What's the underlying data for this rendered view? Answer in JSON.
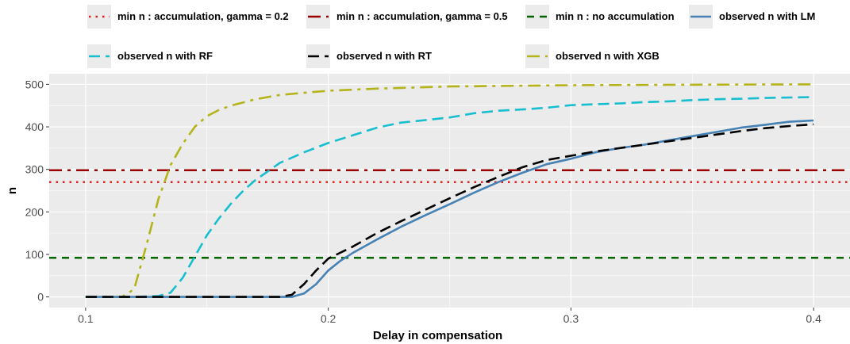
{
  "chart_data": {
    "type": "line",
    "xlabel": "Delay in compensation",
    "ylabel": "n",
    "xlim": [
      0.085,
      0.415
    ],
    "ylim": [
      -25,
      525
    ],
    "x_ticks": [
      0.1,
      0.2,
      0.3,
      0.4
    ],
    "x_tick_labels": [
      "0.1",
      "0.2",
      "0.3",
      "0.4"
    ],
    "y_ticks": [
      0,
      100,
      200,
      300,
      400,
      500
    ],
    "y_tick_labels": [
      "0",
      "100",
      "200",
      "300",
      "400",
      "500"
    ],
    "grid": true,
    "legend_position": "top",
    "hlines": [
      {
        "name": "min n : accumulation, gamma = 0.2",
        "y": 270,
        "color": "#e41a1c",
        "dash": "dotted"
      },
      {
        "name": "min n : accumulation, gamma = 0.5",
        "y": 298,
        "color": "#990000",
        "dash": "dashdot"
      },
      {
        "name": "min n : no accumulation",
        "y": 92,
        "color": "#006400",
        "dash": "dashed"
      }
    ],
    "series": [
      {
        "name": "observed n with LM",
        "color": "#4682b4",
        "dash": "solid",
        "x": [
          0.1,
          0.11,
          0.12,
          0.13,
          0.14,
          0.15,
          0.16,
          0.17,
          0.18,
          0.185,
          0.19,
          0.195,
          0.2,
          0.205,
          0.21,
          0.22,
          0.23,
          0.24,
          0.25,
          0.26,
          0.27,
          0.28,
          0.29,
          0.3,
          0.31,
          0.32,
          0.33,
          0.34,
          0.35,
          0.36,
          0.37,
          0.38,
          0.39,
          0.4
        ],
        "y": [
          0,
          0,
          0,
          0,
          0,
          0,
          0,
          0,
          0,
          0,
          8,
          30,
          62,
          85,
          103,
          135,
          165,
          192,
          218,
          245,
          270,
          292,
          312,
          325,
          340,
          350,
          358,
          368,
          378,
          388,
          398,
          405,
          412,
          415
        ]
      },
      {
        "name": "observed n with RF",
        "color": "#17becf",
        "dash": "longdash",
        "x": [
          0.1,
          0.11,
          0.12,
          0.13,
          0.135,
          0.14,
          0.145,
          0.15,
          0.155,
          0.16,
          0.165,
          0.17,
          0.175,
          0.18,
          0.19,
          0.2,
          0.21,
          0.22,
          0.23,
          0.24,
          0.25,
          0.26,
          0.27,
          0.28,
          0.29,
          0.3,
          0.31,
          0.32,
          0.33,
          0.34,
          0.35,
          0.36,
          0.37,
          0.38,
          0.39,
          0.4
        ],
        "y": [
          0,
          0,
          0,
          2,
          10,
          45,
          95,
          145,
          185,
          220,
          250,
          275,
          295,
          315,
          340,
          362,
          380,
          398,
          410,
          416,
          422,
          432,
          438,
          441,
          445,
          451,
          453,
          455,
          458,
          460,
          463,
          465,
          466,
          468,
          469,
          470
        ]
      },
      {
        "name": "observed n with RT",
        "color": "#000000",
        "dash": "longdash",
        "x": [
          0.1,
          0.12,
          0.14,
          0.16,
          0.18,
          0.185,
          0.19,
          0.195,
          0.2,
          0.21,
          0.22,
          0.23,
          0.24,
          0.25,
          0.26,
          0.27,
          0.28,
          0.29,
          0.3,
          0.31,
          0.32,
          0.33,
          0.34,
          0.35,
          0.36,
          0.37,
          0.38,
          0.39,
          0.4
        ],
        "y": [
          0,
          0,
          0,
          0,
          0,
          5,
          30,
          62,
          90,
          118,
          150,
          178,
          205,
          232,
          258,
          282,
          305,
          322,
          332,
          342,
          350,
          358,
          366,
          374,
          382,
          390,
          397,
          402,
          406
        ]
      },
      {
        "name": "observed n with XGB",
        "color": "#b5b31a",
        "dash": "dashdot",
        "x": [
          0.1,
          0.11,
          0.115,
          0.12,
          0.125,
          0.13,
          0.135,
          0.14,
          0.145,
          0.15,
          0.155,
          0.16,
          0.17,
          0.18,
          0.19,
          0.2,
          0.22,
          0.25,
          0.3,
          0.35,
          0.4
        ],
        "y": [
          0,
          0,
          0,
          18,
          120,
          230,
          310,
          360,
          400,
          425,
          440,
          450,
          465,
          475,
          480,
          485,
          490,
          495,
          498,
          499,
          500
        ]
      }
    ]
  }
}
